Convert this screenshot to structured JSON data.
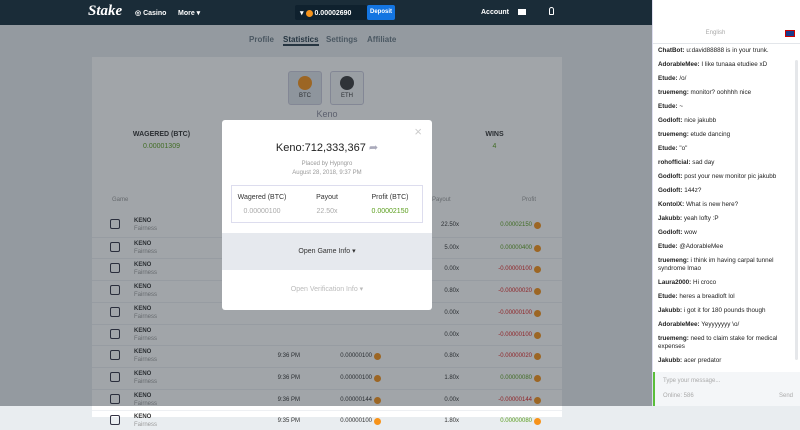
{
  "nav": {
    "logo": "Stake",
    "casino": "Casino",
    "more": "More",
    "balance": "0.00002690",
    "deposit": "Deposit",
    "account": "Account"
  },
  "tabs": [
    "Profile",
    "Statistics",
    "Settings",
    "Affiliate"
  ],
  "currencies": [
    "BTC",
    "ETH"
  ],
  "game_title": "Keno",
  "stats": {
    "wagered_label": "WAGERED (BTC)",
    "wagered": "0.00001309",
    "wins_label": "WINS",
    "wins": "4"
  },
  "table": {
    "headers": [
      "Game",
      "Payout",
      "Profit"
    ],
    "rows": [
      {
        "game": "KENO",
        "sub": "Fairness",
        "payout": "22.50x",
        "profit": "0.00002150"
      },
      {
        "game": "KENO",
        "sub": "Fairness",
        "payout": "5.00x",
        "profit": "0.00000400"
      },
      {
        "game": "KENO",
        "sub": "Fairness",
        "payout": "0.00x",
        "profit": "-0.00000100"
      },
      {
        "game": "KENO",
        "sub": "Fairness",
        "payout": "0.80x",
        "profit": "-0.00000020"
      },
      {
        "game": "KENO",
        "sub": "Fairness",
        "payout": "0.00x",
        "profit": "-0.00000100"
      },
      {
        "game": "KENO",
        "sub": "Fairness",
        "payout": "0.00x",
        "profit": "-0.00000100"
      },
      {
        "game": "KENO",
        "sub": "Fairness",
        "time": "9:36 PM",
        "bet": "0.00000100",
        "payout": "0.80x",
        "profit": "-0.00000020"
      },
      {
        "game": "KENO",
        "sub": "Fairness",
        "time": "9:36 PM",
        "bet": "0.00000100",
        "payout": "1.80x",
        "profit": "0.00000080"
      },
      {
        "game": "KENO",
        "sub": "Fairness",
        "time": "9:36 PM",
        "bet": "0.00000144",
        "payout": "0.00x",
        "profit": "-0.00000144"
      },
      {
        "game": "KENO",
        "sub": "Fairness",
        "time": "9:35 PM",
        "bet": "0.00000100",
        "payout": "1.80x",
        "profit": "0.00000080"
      }
    ]
  },
  "modal": {
    "title": "Keno:712,333,367",
    "placed_by": "Placed by Hypngro",
    "date": "August 28, 2018, 9:37 PM",
    "headers": [
      "Wagered (BTC)",
      "Payout",
      "Profit (BTC)"
    ],
    "values": [
      "0.00000100",
      "22.50x",
      "0.00002150"
    ],
    "game_info": "Open Game Info",
    "verification": "Open Verification Info"
  },
  "chat": {
    "language": "English",
    "messages": [
      {
        "user": "ChatBot:",
        "text": "u:david88888 is in your trunk."
      },
      {
        "user": "AdorableMee:",
        "text": "I like tunaaa etudiee xD"
      },
      {
        "user": "Etude:",
        "text": "/o/"
      },
      {
        "user": "truemeng:",
        "text": "monitor? oohhhh nice"
      },
      {
        "user": "Etude:",
        "text": "~"
      },
      {
        "user": "Godloft:",
        "text": "nice jakubb"
      },
      {
        "user": "truemeng:",
        "text": "etude dancing"
      },
      {
        "user": "Etude:",
        "text": "\"o\""
      },
      {
        "user": "rohofficial:",
        "text": "sad day"
      },
      {
        "user": "Godloft:",
        "text": "post your new monitor pic jakubb"
      },
      {
        "user": "Godloft:",
        "text": "144z?"
      },
      {
        "user": "KontolX:",
        "text": "What is new here?"
      },
      {
        "user": "Jakubb:",
        "text": "yeah lofty :P"
      },
      {
        "user": "Godloft:",
        "text": "wow"
      },
      {
        "user": "Etude:",
        "text": "@AdorableMee"
      },
      {
        "user": "truemeng:",
        "text": "i think im having carpal tunnel syndrome lmao"
      },
      {
        "user": "Laura2000:",
        "text": "Hi croco"
      },
      {
        "user": "Etude:",
        "text": "heres a breadloft lol"
      },
      {
        "user": "Jakubb:",
        "text": "i got it for 180 pounds though"
      },
      {
        "user": "AdorableMee:",
        "text": "Yeyyyyyyy \\o/"
      },
      {
        "user": "truemeng:",
        "text": "need to claim stake for medical expenses"
      },
      {
        "user": "Jakubb:",
        "text": "acer predator"
      }
    ],
    "placeholder": "Type your message...",
    "online": "Online: 586",
    "send": "Send"
  }
}
